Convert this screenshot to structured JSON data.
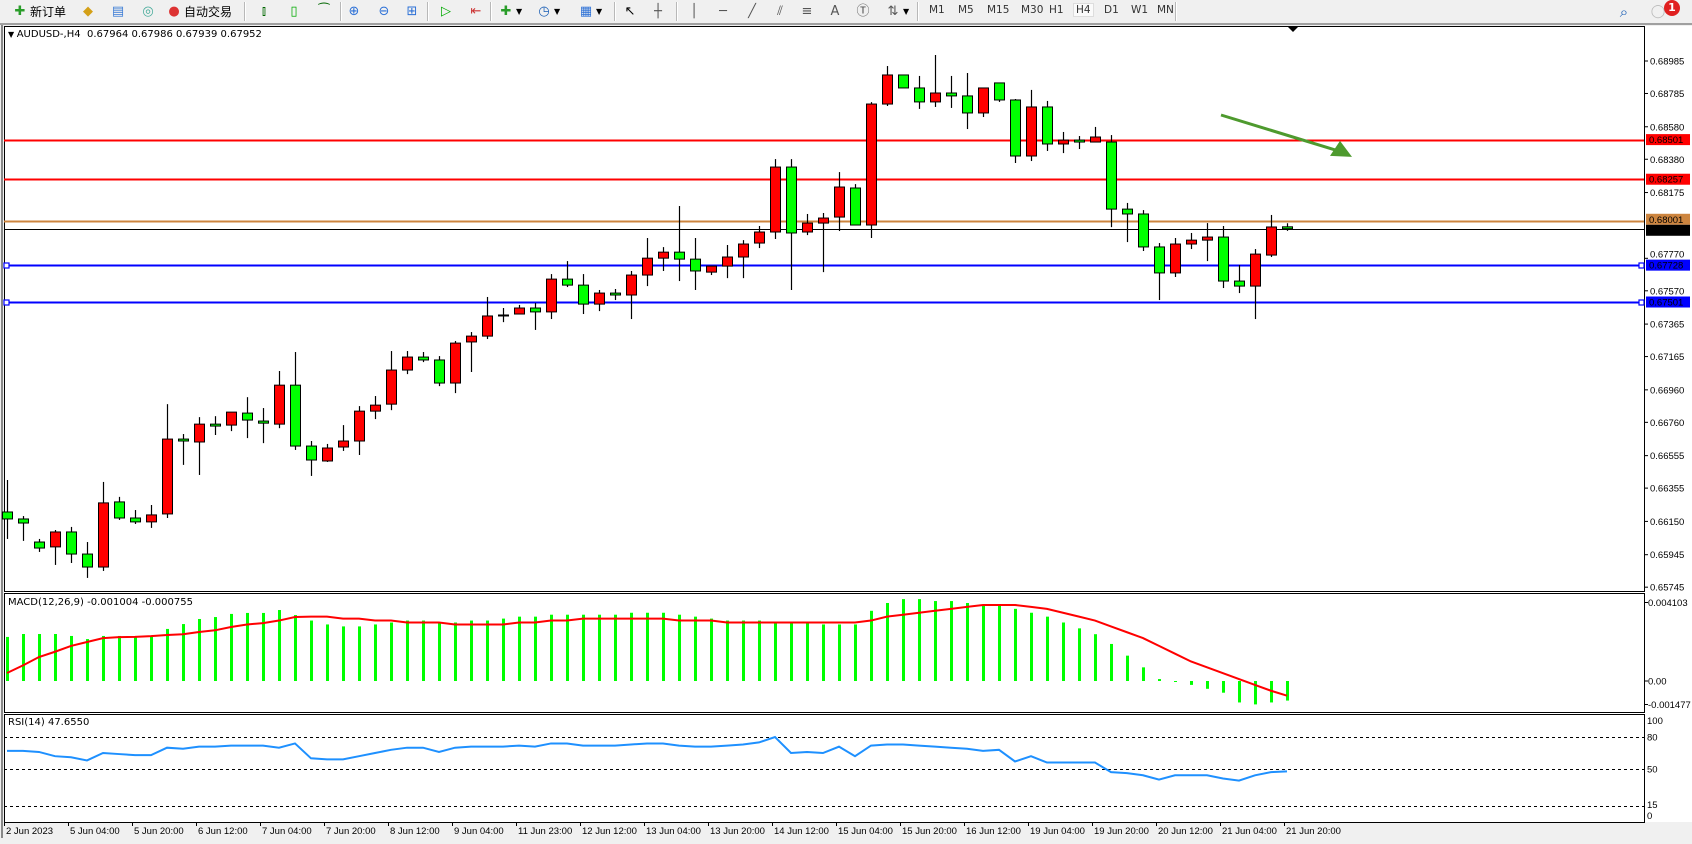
{
  "toolbar": {
    "new_order_label": "新订单",
    "auto_trading_label": "自动交易",
    "icons": [
      "new-order-icon",
      "market-watch-icon",
      "data-window-icon",
      "signals-icon",
      "auto-trading-icon",
      "bar-chart-icon",
      "candlestick-icon",
      "line-chart-icon",
      "zoom-in-icon",
      "zoom-out-icon",
      "tile-windows-icon",
      "autoscroll-icon",
      "chart-shift-icon",
      "indicators-icon",
      "periods-icon",
      "templates-icon",
      "cursor-icon",
      "crosshair-icon",
      "vertical-line-icon",
      "horizontal-line-icon",
      "trendline-icon",
      "fibo-channel-icon",
      "fibo-retracement-icon",
      "text-icon",
      "text-label-icon",
      "arrows-icon",
      "search-icon",
      "notifications-icon"
    ],
    "timeframes": [
      "M1",
      "M5",
      "M15",
      "M30",
      "H1",
      "H4",
      "D1",
      "W1",
      "MN"
    ],
    "active_timeframe": "H4",
    "notification_count": "1"
  },
  "chart": {
    "symbol_header": "AUDUSD-,H4  0.67964 0.67986 0.67939 0.67952",
    "colors": {
      "bull": "#ff0000",
      "bear": "#00ff00",
      "outline": "#000000",
      "resistance": "#ff0000",
      "support": "#0000ff",
      "orange_line": "#cd853f",
      "arrow": "#4e9a2e",
      "macd_hist": "#00ff00",
      "macd_signal": "#ff0000",
      "rsi": "#1e90ff"
    },
    "price_ticks": [
      "0.68985",
      "0.68785",
      "0.68580",
      "0.68380",
      "0.68175",
      "0.67770",
      "0.67570",
      "0.67365",
      "0.67165",
      "0.66960",
      "0.66760",
      "0.66555",
      "0.66355",
      "0.66150",
      "0.65945",
      "0.65745"
    ],
    "levels": [
      {
        "price": 0.68501,
        "label": "0.68501",
        "color": "#ff0000",
        "text": "#ffffff",
        "handles": false
      },
      {
        "price": 0.68257,
        "label": "0.68257",
        "color": "#ff0000",
        "text": "#ffffff",
        "handles": false
      },
      {
        "price": 0.68001,
        "label": "0.68001",
        "color": "#cd853f",
        "text": "#ffffff",
        "handles": false
      },
      {
        "price": 0.67952,
        "label": "0.67952",
        "color": "#000000",
        "text": "#ffffff",
        "handles": false,
        "thin": true
      },
      {
        "price": 0.67728,
        "label": "0.67728",
        "color": "#0000ff",
        "text": "#ffffff",
        "handles": true
      },
      {
        "price": 0.67501,
        "label": "0.67501",
        "color": "#0000ff",
        "text": "#ffffff",
        "handles": true
      }
    ],
    "arrow": {
      "from_price": 0.68985,
      "to_price": 0.68395,
      "direction": "down"
    },
    "time_labels": [
      "2 Jun 2023",
      "5 Jun 04:00",
      "5 Jun 20:00",
      "6 Jun 12:00",
      "7 Jun 04:00",
      "7 Jun 20:00",
      "8 Jun 12:00",
      "9 Jun 04:00",
      "11 Jun 23:00",
      "12 Jun 12:00",
      "13 Jun 04:00",
      "13 Jun 20:00",
      "14 Jun 12:00",
      "15 Jun 04:00",
      "15 Jun 20:00",
      "16 Jun 12:00",
      "19 Jun 04:00",
      "19 Jun 20:00",
      "20 Jun 12:00",
      "21 Jun 04:00",
      "21 Jun 20:00"
    ]
  },
  "chart_data": {
    "type": "candlestick",
    "symbol": "AUDUSD-",
    "timeframe": "H4",
    "ylim": [
      0.65745,
      0.68985
    ],
    "ohlc": [
      [
        0.66208,
        0.66405,
        0.66042,
        0.66165
      ],
      [
        0.66165,
        0.66183,
        0.6603,
        0.6614
      ],
      [
        0.66023,
        0.66042,
        0.65962,
        0.65986
      ],
      [
        0.65993,
        0.66097,
        0.65882,
        0.66085
      ],
      [
        0.66085,
        0.66116,
        0.65894,
        0.65949
      ],
      [
        0.65949,
        0.66023,
        0.65802,
        0.65869
      ],
      [
        0.65869,
        0.66393,
        0.65845,
        0.66264
      ],
      [
        0.6627,
        0.66301,
        0.66159,
        0.66171
      ],
      [
        0.66171,
        0.6622,
        0.66134,
        0.66147
      ],
      [
        0.66147,
        0.66251,
        0.6611,
        0.6619
      ],
      [
        0.66196,
        0.66872,
        0.66171,
        0.66657
      ],
      [
        0.66657,
        0.66688,
        0.66498,
        0.66645
      ],
      [
        0.66639,
        0.66792,
        0.66436,
        0.66749
      ],
      [
        0.66749,
        0.66798,
        0.66682,
        0.66737
      ],
      [
        0.66743,
        0.66823,
        0.66706,
        0.66823
      ],
      [
        0.66817,
        0.66915,
        0.66663,
        0.66774
      ],
      [
        0.66768,
        0.66848,
        0.66632,
        0.66755
      ],
      [
        0.66749,
        0.67076,
        0.66724,
        0.66989
      ],
      [
        0.66989,
        0.67193,
        0.6659,
        0.66614
      ],
      [
        0.66614,
        0.66645,
        0.6643,
        0.66528
      ],
      [
        0.66522,
        0.66627,
        0.66516,
        0.66602
      ],
      [
        0.66608,
        0.66743,
        0.66584,
        0.66645
      ],
      [
        0.66645,
        0.6686,
        0.66559,
        0.66829
      ],
      [
        0.66829,
        0.66922,
        0.6678,
        0.66866
      ],
      [
        0.66872,
        0.67199,
        0.66835,
        0.67082
      ],
      [
        0.67082,
        0.67199,
        0.67057,
        0.67162
      ],
      [
        0.67162,
        0.67193,
        0.67131,
        0.67144
      ],
      [
        0.67144,
        0.67168,
        0.66983,
        0.67002
      ],
      [
        0.67002,
        0.67261,
        0.6694,
        0.67248
      ],
      [
        0.67255,
        0.67316,
        0.6707,
        0.67291
      ],
      [
        0.67291,
        0.67532,
        0.67273,
        0.67415
      ],
      [
        0.67418,
        0.67464,
        0.67377,
        0.67418
      ],
      [
        0.67427,
        0.67483,
        0.67427,
        0.67464
      ],
      [
        0.67464,
        0.67495,
        0.67329,
        0.6744
      ],
      [
        0.6744,
        0.67673,
        0.67396,
        0.67642
      ],
      [
        0.67642,
        0.67753,
        0.67593,
        0.67605
      ],
      [
        0.67605,
        0.67673,
        0.67427,
        0.67488
      ],
      [
        0.67488,
        0.67575,
        0.67445,
        0.67556
      ],
      [
        0.67556,
        0.67581,
        0.67513,
        0.67544
      ],
      [
        0.67544,
        0.67692,
        0.67396,
        0.67667
      ],
      [
        0.67667,
        0.67895,
        0.67599,
        0.67771
      ],
      [
        0.67771,
        0.67839,
        0.67692,
        0.67808
      ],
      [
        0.67808,
        0.68092,
        0.6763,
        0.67765
      ],
      [
        0.67765,
        0.67895,
        0.67575,
        0.67692
      ],
      [
        0.67685,
        0.67722,
        0.67667,
        0.67722
      ],
      [
        0.67722,
        0.67852,
        0.67648,
        0.67778
      ],
      [
        0.67778,
        0.67882,
        0.67648,
        0.67858
      ],
      [
        0.67864,
        0.67969,
        0.67833,
        0.67932
      ],
      [
        0.67932,
        0.68381,
        0.67889,
        0.68332
      ],
      [
        0.68332,
        0.68381,
        0.67575,
        0.67926
      ],
      [
        0.67932,
        0.68043,
        0.67913,
        0.67987
      ],
      [
        0.67987,
        0.68049,
        0.67685,
        0.68018
      ],
      [
        0.68024,
        0.68301,
        0.67938,
        0.68209
      ],
      [
        0.68203,
        0.68227,
        0.67975,
        0.67975
      ],
      [
        0.67975,
        0.68732,
        0.67895,
        0.6872
      ],
      [
        0.6872,
        0.68954,
        0.68708,
        0.68899
      ],
      [
        0.68899,
        0.68899,
        0.68819,
        0.68819
      ],
      [
        0.68819,
        0.68893,
        0.6869,
        0.68733
      ],
      [
        0.68733,
        0.69022,
        0.68702,
        0.68788
      ],
      [
        0.68788,
        0.68893,
        0.68696,
        0.6877
      ],
      [
        0.6877,
        0.68911,
        0.68566,
        0.68665
      ],
      [
        0.68665,
        0.68819,
        0.6864,
        0.68819
      ],
      [
        0.6885,
        0.6885,
        0.68733,
        0.68745
      ],
      [
        0.68745,
        0.68751,
        0.68357,
        0.684
      ],
      [
        0.684,
        0.68807,
        0.68369,
        0.68702
      ],
      [
        0.68702,
        0.68739,
        0.68431,
        0.68474
      ],
      [
        0.68474,
        0.68548,
        0.68418,
        0.68498
      ],
      [
        0.68498,
        0.68523,
        0.68443,
        0.68486
      ],
      [
        0.68486,
        0.68579,
        0.68486,
        0.68517
      ],
      [
        0.68486,
        0.68529,
        0.67962,
        0.68073
      ],
      [
        0.68073,
        0.68111,
        0.6787,
        0.68043
      ],
      [
        0.68043,
        0.68067,
        0.67815,
        0.6784
      ],
      [
        0.6784,
        0.67864,
        0.67513,
        0.6768
      ],
      [
        0.6768,
        0.67895,
        0.67655,
        0.67858
      ],
      [
        0.67858,
        0.67926,
        0.67827,
        0.67882
      ],
      [
        0.67882,
        0.67987,
        0.67753,
        0.67901
      ],
      [
        0.67901,
        0.67969,
        0.67587,
        0.6763
      ],
      [
        0.6763,
        0.67729,
        0.67556,
        0.67599
      ],
      [
        0.67599,
        0.67827,
        0.67396,
        0.67796
      ],
      [
        0.6779,
        0.68037,
        0.67778,
        0.67963
      ],
      [
        0.67964,
        0.67986,
        0.67939,
        0.67952
      ]
    ],
    "macd": {
      "label": "MACD(12,26,9) -0.001004 -0.000755",
      "ylim": [
        -0.001477,
        0.004103
      ],
      "ticks": [
        "0.004103",
        "0.00",
        "-0.001477"
      ],
      "histogram": [
        0.00226,
        0.00241,
        0.00241,
        0.00241,
        0.00231,
        0.00215,
        0.00231,
        0.00231,
        0.00226,
        0.00226,
        0.00267,
        0.00292,
        0.00318,
        0.00328,
        0.00344,
        0.00349,
        0.00349,
        0.00364,
        0.00338,
        0.0031,
        0.0029,
        0.0028,
        0.0028,
        0.0029,
        0.003,
        0.0031,
        0.0031,
        0.003,
        0.003,
        0.0031,
        0.0031,
        0.0032,
        0.0033,
        0.0033,
        0.0034,
        0.0034,
        0.0034,
        0.0034,
        0.0034,
        0.0035,
        0.0035,
        0.0035,
        0.0034,
        0.0033,
        0.0032,
        0.0031,
        0.0031,
        0.0031,
        0.003,
        0.003,
        0.003,
        0.0029,
        0.0029,
        0.0029,
        0.0036,
        0.004,
        0.0042,
        0.0042,
        0.0041,
        0.0041,
        0.004,
        0.0039,
        0.0039,
        0.0037,
        0.0035,
        0.0033,
        0.003,
        0.0027,
        0.0024,
        0.0019,
        0.0013,
        0.0007,
        0.0001,
        -2e-05,
        -0.0002,
        -0.0004,
        -0.0006,
        -0.0011,
        -0.0012,
        -0.0011,
        -0.001004
      ],
      "signal": [
        0.00041,
        0.0008,
        0.00123,
        0.0015,
        0.0018,
        0.002,
        0.0022,
        0.00225,
        0.00226,
        0.0023,
        0.00236,
        0.0024,
        0.00251,
        0.0026,
        0.00277,
        0.0029,
        0.00297,
        0.0031,
        0.00328,
        0.0033,
        0.0033,
        0.0032,
        0.0032,
        0.0031,
        0.0031,
        0.003,
        0.003,
        0.003,
        0.0029,
        0.0029,
        0.0029,
        0.0029,
        0.003,
        0.003,
        0.0031,
        0.0031,
        0.0032,
        0.0032,
        0.0032,
        0.0032,
        0.0032,
        0.0032,
        0.0031,
        0.0031,
        0.0031,
        0.003,
        0.003,
        0.003,
        0.003,
        0.003,
        0.003,
        0.003,
        0.003,
        0.003,
        0.0031,
        0.0033,
        0.0034,
        0.0035,
        0.0036,
        0.0037,
        0.0038,
        0.0039,
        0.0039,
        0.0039,
        0.0038,
        0.0037,
        0.0035,
        0.0033,
        0.0031,
        0.0028,
        0.0025,
        0.0022,
        0.0018,
        0.0014,
        0.001,
        0.0007,
        0.0004,
        0.0001,
        -0.0002,
        -0.0005,
        -0.000755
      ]
    },
    "rsi": {
      "label": "RSI(14) 47.6550",
      "ylim": [
        0,
        100
      ],
      "ticks": [
        "100",
        "80",
        "50",
        "15",
        "0"
      ],
      "levels": [
        80,
        50,
        15
      ],
      "values": [
        67,
        67,
        66,
        62,
        61,
        58,
        65,
        64,
        63,
        63,
        70,
        69,
        71,
        71,
        72,
        72,
        72,
        70,
        74,
        60,
        59,
        59,
        62,
        65,
        68,
        70,
        70,
        66,
        70,
        71,
        71,
        71,
        72,
        71,
        74,
        74,
        72,
        72,
        72,
        73,
        74,
        74,
        72,
        71,
        71,
        72,
        73,
        75,
        80,
        65,
        66,
        65,
        71,
        62,
        72,
        73,
        73,
        72,
        71,
        70,
        69,
        67,
        68,
        57,
        62,
        56,
        56,
        56,
        56,
        47,
        46,
        44,
        40,
        44,
        44,
        44,
        41,
        39,
        44,
        47,
        47.655
      ]
    }
  }
}
